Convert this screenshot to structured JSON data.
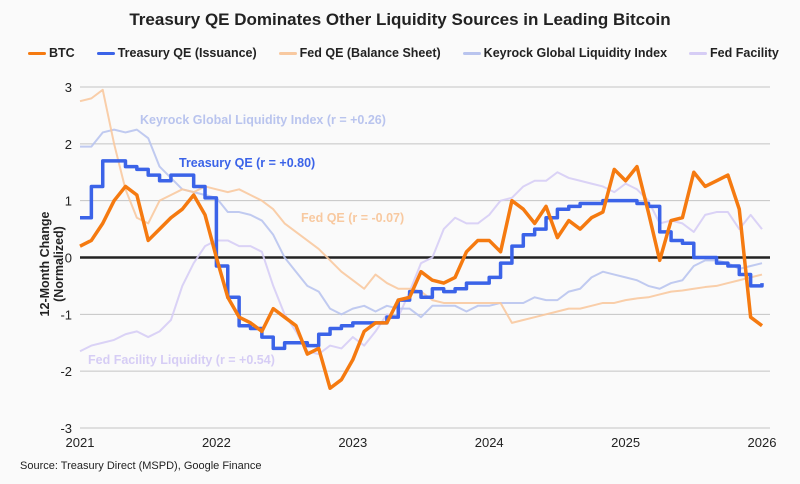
{
  "chart_data": {
    "type": "line",
    "title": "Treasury QE Dominates Other Liquidity Sources in Leading Bitcoin",
    "ylabel": "12-Month Change (Normalized)",
    "xlabel": "",
    "ylim": [
      -3,
      3
    ],
    "yticks": [
      "3",
      "2",
      "1",
      "0",
      "-1",
      "-2",
      "-3"
    ],
    "xticks": [
      "2021",
      "2022",
      "2023",
      "2024",
      "2025",
      "2026"
    ],
    "x_range": [
      "2021-01",
      "2026-01"
    ],
    "x_start": "2021-01",
    "x_step": "month",
    "grid": true,
    "legend_position": "top",
    "series": [
      {
        "name": "BTC",
        "color": "#f57a10",
        "values": [
          0.2,
          0.3,
          0.6,
          1.0,
          1.25,
          1.1,
          0.3,
          0.5,
          0.7,
          0.85,
          1.1,
          0.75,
          0.0,
          -0.7,
          -1.05,
          -1.15,
          -1.3,
          -0.9,
          -1.05,
          -1.2,
          -1.7,
          -1.6,
          -2.3,
          -2.15,
          -1.8,
          -1.3,
          -1.15,
          -1.15,
          -0.75,
          -0.7,
          -0.25,
          -0.4,
          -0.45,
          -0.35,
          0.1,
          0.3,
          0.3,
          0.1,
          1.0,
          0.85,
          0.6,
          0.9,
          0.35,
          0.65,
          0.5,
          0.7,
          0.8,
          1.55,
          1.35,
          1.6,
          0.8,
          -0.05,
          0.65,
          0.7,
          1.5,
          1.25,
          1.35,
          1.45,
          0.85,
          -1.05,
          -1.2
        ]
      },
      {
        "name": "Treasury QE (Issuance)",
        "color": "#3b63e8",
        "step": true,
        "values": [
          0.7,
          1.25,
          1.7,
          1.7,
          1.6,
          1.55,
          1.45,
          1.35,
          1.45,
          1.45,
          1.25,
          1.05,
          -0.15,
          -0.7,
          -1.2,
          -1.25,
          -1.4,
          -1.6,
          -1.5,
          -1.5,
          -1.55,
          -1.35,
          -1.25,
          -1.2,
          -1.15,
          -1.15,
          -1.15,
          -1.05,
          -0.75,
          -0.6,
          -0.7,
          -0.55,
          -0.6,
          -0.55,
          -0.45,
          -0.45,
          -0.35,
          -0.1,
          0.2,
          0.4,
          0.5,
          0.7,
          0.85,
          0.9,
          0.95,
          0.95,
          1.0,
          1.0,
          1.0,
          0.95,
          0.9,
          0.45,
          0.3,
          0.25,
          0.0,
          0.0,
          -0.1,
          -0.15,
          -0.3,
          -0.5,
          -0.45
        ]
      },
      {
        "name": "Fed QE (Balance Sheet)",
        "color": "#f8c9a0",
        "values": [
          2.75,
          2.8,
          2.95,
          2.0,
          1.2,
          0.7,
          0.6,
          1.0,
          1.1,
          1.2,
          1.15,
          1.25,
          1.2,
          1.15,
          1.2,
          1.1,
          1.0,
          0.85,
          0.6,
          0.45,
          0.3,
          0.15,
          -0.05,
          -0.25,
          -0.4,
          -0.55,
          -0.3,
          -0.45,
          -0.55,
          -0.55,
          -0.6,
          -0.75,
          -0.8,
          -0.8,
          -0.8,
          -0.8,
          -0.8,
          -0.8,
          -1.15,
          -1.1,
          -1.05,
          -1.0,
          -0.95,
          -0.9,
          -0.9,
          -0.85,
          -0.8,
          -0.8,
          -0.75,
          -0.72,
          -0.7,
          -0.65,
          -0.6,
          -0.58,
          -0.55,
          -0.52,
          -0.5,
          -0.45,
          -0.4,
          -0.35,
          -0.3
        ]
      },
      {
        "name": "Keyrock Global Liquidity Index",
        "color": "#b9c4ee",
        "values": [
          1.95,
          1.95,
          2.2,
          2.25,
          2.2,
          2.25,
          2.1,
          1.6,
          1.4,
          1.2,
          1.15,
          1.1,
          1.05,
          0.8,
          0.8,
          0.75,
          0.65,
          0.4,
          0.0,
          -0.25,
          -0.5,
          -0.6,
          -0.9,
          -1.0,
          -0.9,
          -0.85,
          -0.95,
          -0.85,
          -0.9,
          -0.9,
          -1.05,
          -0.85,
          -0.85,
          -0.85,
          -0.95,
          -0.85,
          -0.85,
          -0.8,
          -0.8,
          -0.8,
          -0.7,
          -0.75,
          -0.75,
          -0.6,
          -0.55,
          -0.35,
          -0.25,
          -0.3,
          -0.35,
          -0.4,
          -0.5,
          -0.55,
          -0.45,
          -0.4,
          -0.15,
          -0.05,
          -0.05,
          -0.1,
          -0.2,
          -0.15,
          -0.1
        ]
      },
      {
        "name": "Fed Facility",
        "color": "#d6cdf5",
        "values": [
          -1.65,
          -1.55,
          -1.5,
          -1.45,
          -1.35,
          -1.3,
          -1.4,
          -1.3,
          -1.1,
          -0.5,
          -0.1,
          0.2,
          0.3,
          0.3,
          0.2,
          0.2,
          0.1,
          -0.5,
          -1.0,
          -1.3,
          -1.65,
          -1.7,
          -1.55,
          -1.6,
          -1.4,
          -1.55,
          -1.3,
          -1.0,
          -1.05,
          -0.6,
          -0.1,
          0.0,
          0.5,
          0.7,
          0.6,
          0.6,
          0.75,
          1.0,
          1.05,
          1.25,
          1.35,
          1.35,
          1.5,
          1.4,
          1.35,
          1.3,
          1.25,
          1.15,
          1.3,
          1.2,
          1.0,
          0.6,
          0.65,
          0.6,
          0.45,
          0.75,
          0.8,
          0.8,
          0.5,
          0.75,
          0.5
        ]
      }
    ],
    "annotations": [
      {
        "text": "Keyrock Global Liquidity Index (r = +0.26)",
        "color": "#b9c4ee"
      },
      {
        "text": "Treasury QE (r = +0.80)",
        "color": "#3b63e8"
      },
      {
        "text": "Fed QE (r = -0.07)",
        "color": "#f8c9a0"
      },
      {
        "text": "Fed Facility Liquidity (r = +0.54)",
        "color": "#d6cdf5"
      }
    ]
  },
  "source": "Source: Treasury Direct (MSPD), Google Finance"
}
